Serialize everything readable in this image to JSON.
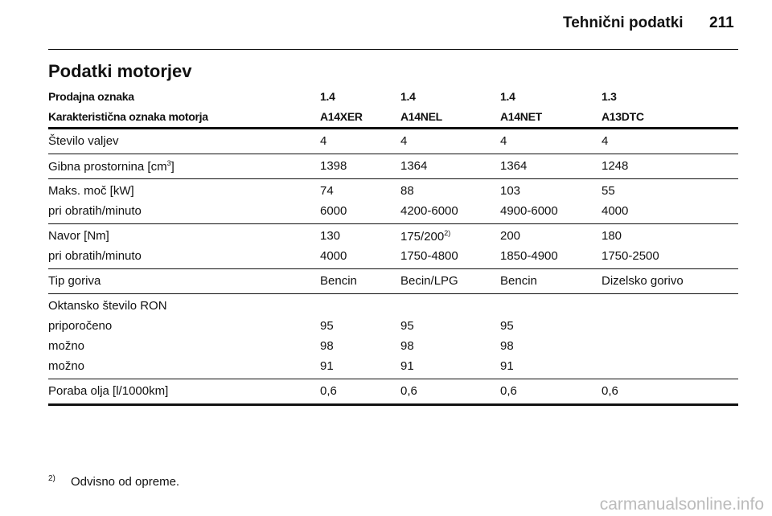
{
  "header": {
    "section": "Tehnični podatki",
    "page": "211"
  },
  "title": "Podatki motorjev",
  "table": {
    "head": [
      [
        "Prodajna oznaka",
        "1.4",
        "1.4",
        "1.4",
        "1.3"
      ],
      [
        "Karakteristična oznaka motorja",
        "A14XER",
        "A14NEL",
        "A14NET",
        "A13DTC"
      ]
    ],
    "groups": [
      [
        [
          "Število valjev",
          "4",
          "4",
          "4",
          "4"
        ]
      ],
      [
        [
          {
            "text": "Gibna prostornina [cm",
            "sup": "3",
            "tail": "]"
          },
          "1398",
          "1364",
          "1364",
          "1248"
        ]
      ],
      [
        [
          "Maks. moč [kW]",
          "74",
          "88",
          "103",
          "55"
        ],
        [
          "pri obratih/minuto",
          "6000",
          "4200-6000",
          "4900-6000",
          "4000"
        ]
      ],
      [
        [
          "Navor [Nm]",
          "130",
          {
            "text": "175/200",
            "sup": "2)"
          },
          "200",
          "180"
        ],
        [
          "pri obratih/minuto",
          "4000",
          "1750-4800",
          "1850-4900",
          "1750-2500"
        ]
      ],
      [
        [
          "Tip goriva",
          "Bencin",
          "Becin/LPG",
          "Bencin",
          "Dizelsko gorivo"
        ]
      ],
      [
        [
          "Oktansko število RON"
        ],
        [
          "priporočeno",
          "95",
          "95",
          "95"
        ],
        [
          "možno",
          "98",
          "98",
          "98"
        ],
        [
          "možno",
          "91",
          "91",
          "91"
        ]
      ],
      [
        [
          "Poraba olja [l/1000km]",
          "0,6",
          "0,6",
          "0,6",
          "0,6"
        ]
      ]
    ]
  },
  "footnote": {
    "mark": "2)",
    "text": "Odvisno od opreme."
  },
  "watermark": "carmanualsonline.info"
}
